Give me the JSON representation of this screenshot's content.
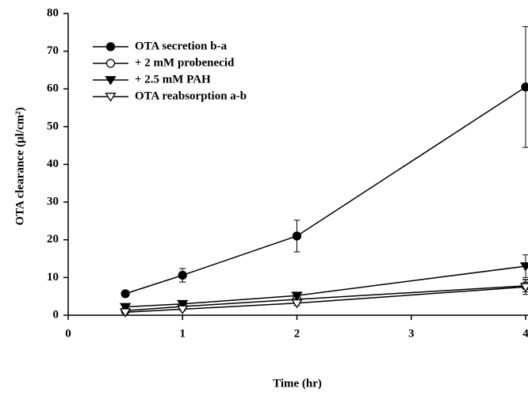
{
  "chart_data": {
    "type": "line",
    "x": [
      0.5,
      1,
      2,
      4
    ],
    "series": [
      {
        "name": "OTA secretion b-a",
        "color": "#000000",
        "marker": "circle",
        "filled": true,
        "values": [
          5.7,
          10.6,
          21.0,
          60.5
        ],
        "errors": [
          0.5,
          1.8,
          4.2,
          16.0
        ]
      },
      {
        "name": "+ 2 mM probenecid",
        "color": "#000000",
        "marker": "circle",
        "filled": false,
        "values": [
          1.2,
          2.3,
          4.2,
          7.8
        ],
        "errors": [
          0.3,
          0.5,
          0.8,
          1.6
        ]
      },
      {
        "name": "+ 2.5 mM PAH",
        "color": "#000000",
        "marker": "triangle-down",
        "filled": true,
        "values": [
          2.2,
          3.0,
          5.2,
          13.0
        ],
        "errors": [
          0.3,
          0.5,
          0.8,
          3.0
        ]
      },
      {
        "name": "OTA reabsorption a-b",
        "color": "#000000",
        "marker": "triangle-down",
        "filled": false,
        "values": [
          0.8,
          1.6,
          3.2,
          7.5
        ],
        "errors": [
          0.2,
          0.4,
          0.6,
          2.0
        ]
      }
    ],
    "xlabel": "Time (hr)",
    "ylabel": "OTA clearance (μl/cm²)",
    "xlim": [
      0,
      4
    ],
    "ylim": [
      0,
      80
    ],
    "xticks": [
      0,
      1,
      2,
      3,
      4
    ],
    "yticks": [
      0,
      10,
      20,
      30,
      40,
      50,
      60,
      70,
      80
    ],
    "legend": "upper left"
  }
}
